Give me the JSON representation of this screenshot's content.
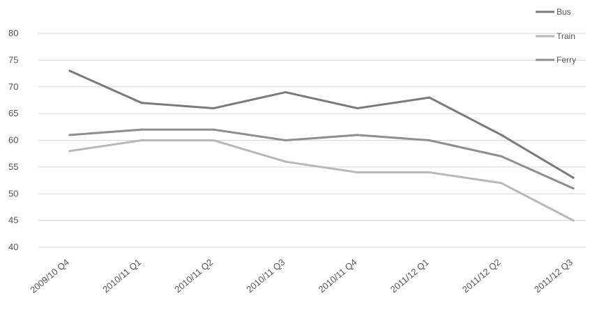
{
  "chart_data": {
    "type": "line",
    "categories": [
      "2009/10 Q4",
      "2010/11 Q1",
      "2010/11 Q2",
      "2010/11 Q3",
      "2010/11 Q4",
      "2011/12 Q1",
      "2011/12 Q2",
      "2011/12 Q3"
    ],
    "series": [
      {
        "name": "Bus",
        "values": [
          73,
          67,
          66,
          69,
          66,
          68,
          61,
          53
        ],
        "color": "#7a7a7a"
      },
      {
        "name": "Train",
        "values": [
          58,
          60,
          60,
          56,
          54,
          54,
          52,
          45
        ],
        "color": "#b8b8b8"
      },
      {
        "name": "Ferry",
        "values": [
          61,
          62,
          62,
          60,
          61,
          60,
          57,
          51
        ],
        "color": "#8e8e8e"
      }
    ],
    "y_ticks": [
      "80",
      "75",
      "70",
      "65",
      "60",
      "55",
      "50",
      "45",
      "40"
    ],
    "ylim": [
      40,
      80
    ],
    "grid": true,
    "legend_position": "top-right",
    "title": "",
    "xlabel": "",
    "ylabel": ""
  }
}
